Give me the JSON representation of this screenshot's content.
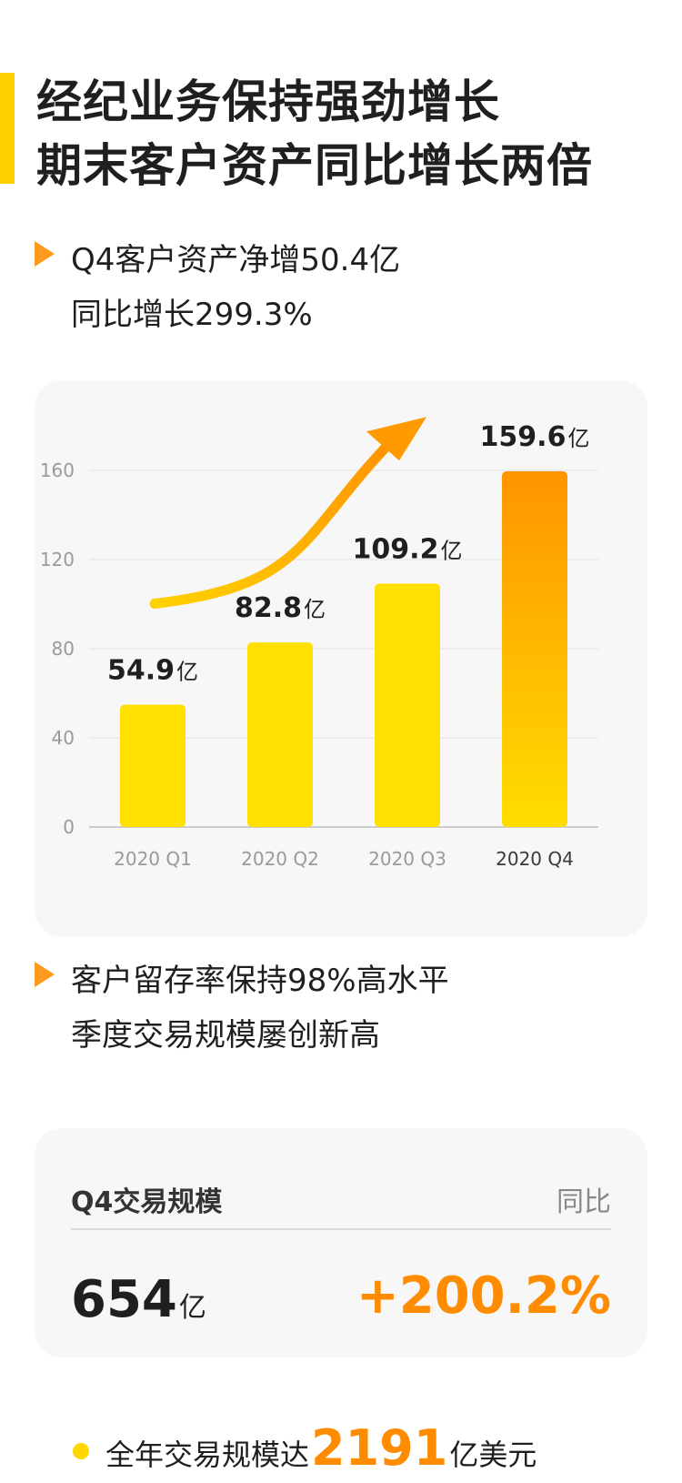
{
  "title": {
    "line1": "经纪业务保持强劲增长",
    "line2": "期末客户资产同比增长两倍"
  },
  "section1": {
    "line1": "Q4客户资产净增50.4亿",
    "line2": "同比增长299.3%"
  },
  "section2": {
    "line1": "客户留存率保持98%高水平",
    "line2": "季度交易规模屡创新高"
  },
  "trade": {
    "label": "Q4交易规模",
    "yoy_label": "同比",
    "value": "654",
    "unit": "亿",
    "yoy": "+200.2%"
  },
  "annual": {
    "prefix": "全年交易规模达",
    "value": "2191",
    "suffix": "亿美元"
  },
  "colors": {
    "bar": "#FFE000",
    "bar_highlight_top": "#FF9400",
    "bar_highlight_bottom": "#FFDD00",
    "arrow": "#FF9A00",
    "accent": "#FF8C00",
    "title_bar": "#FFD000"
  },
  "chart_data": {
    "type": "bar",
    "categories": [
      "2020 Q1",
      "2020 Q2",
      "2020 Q3",
      "2020 Q4"
    ],
    "values": [
      54.9,
      82.8,
      109.2,
      159.6
    ],
    "value_labels": [
      "54.9",
      "82.8",
      "109.2",
      "159.6"
    ],
    "value_unit": "亿",
    "yticks": [
      0,
      40,
      80,
      120,
      160
    ],
    "ylim": [
      0,
      160
    ],
    "grid": true,
    "highlight_index": 3,
    "trend_arrow": true
  }
}
